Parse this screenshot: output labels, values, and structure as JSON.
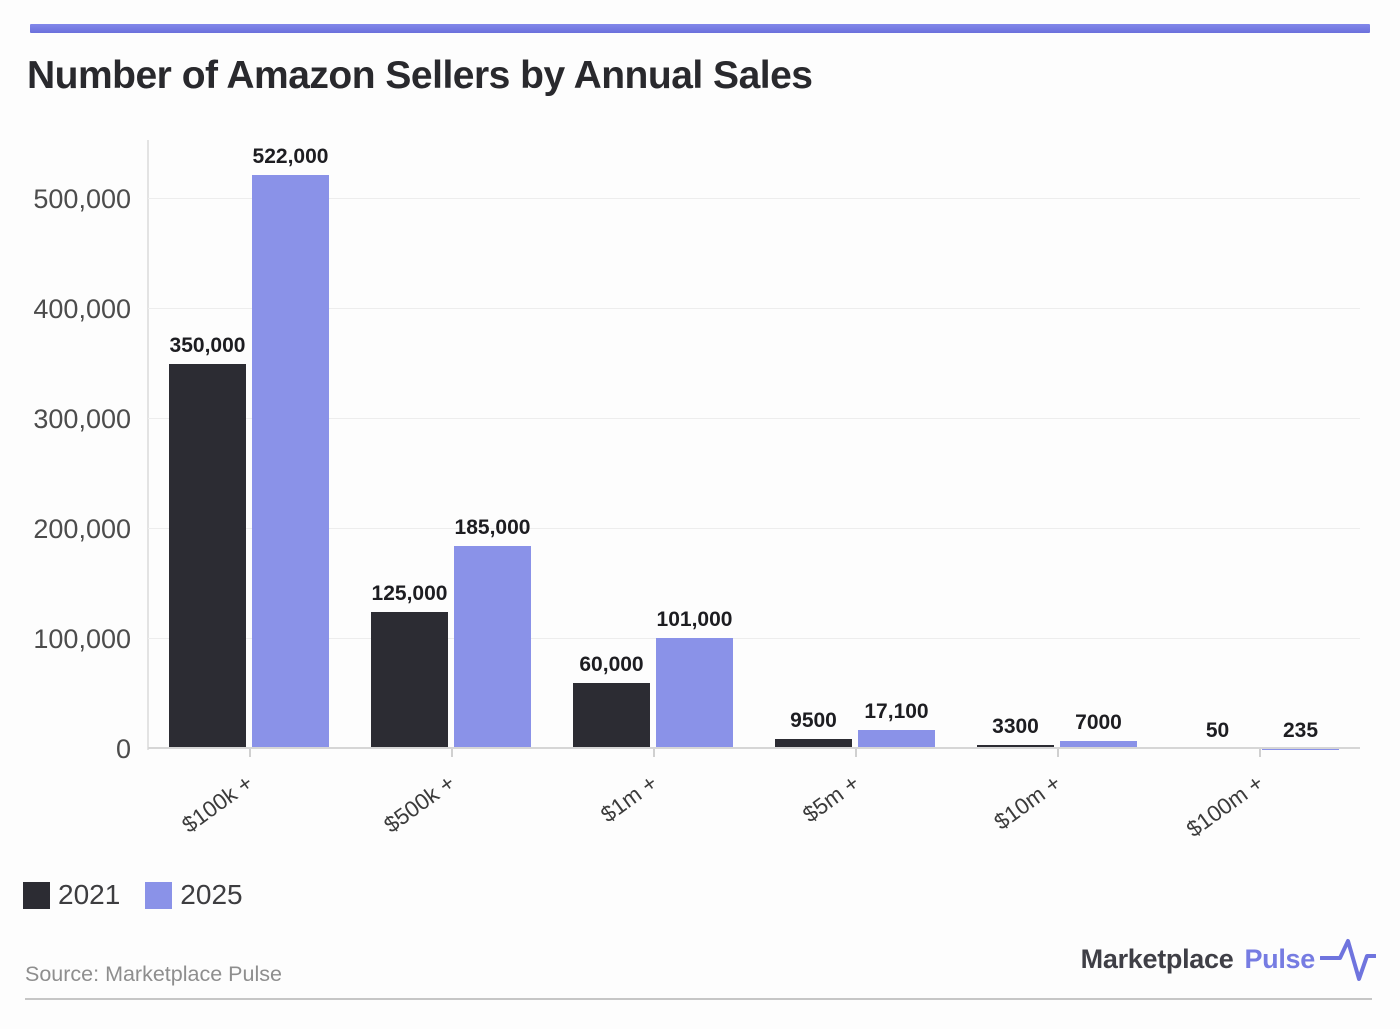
{
  "title": "Number of Amazon Sellers by Annual Sales",
  "source": "Source: Marketplace Pulse",
  "logo": {
    "brand": "Marketplace",
    "brand_accent": "Pulse",
    "icon": "pulse-line-icon",
    "accent_color": "#767ce2"
  },
  "colors": {
    "top_accent_line": "#7378e1",
    "bar_2021": "#2c2c33",
    "bar_2025": "#8a92e8",
    "gridline": "#ededed",
    "baseline": "#d6d6d6"
  },
  "chart_data": {
    "type": "bar",
    "title": "Number of Amazon Sellers by Annual Sales",
    "categories": [
      "$100k +",
      "$500k +",
      "$1m +",
      "$5m +",
      "$10m +",
      "$100m +"
    ],
    "series": [
      {
        "name": "2021",
        "color": "#2c2c33",
        "values": [
          350000,
          125000,
          60000,
          9500,
          3300,
          50
        ],
        "labels": [
          "350,000",
          "125,000",
          "60,000",
          "9500",
          "3300",
          "50"
        ]
      },
      {
        "name": "2025",
        "color": "#8a92e8",
        "values": [
          522000,
          185000,
          101000,
          17100,
          7000,
          235
        ],
        "labels": [
          "522,000",
          "185,000",
          "101,000",
          "17,100",
          "7000",
          "235"
        ]
      }
    ],
    "xlabel": "",
    "ylabel": "",
    "ylim": [
      0,
      550000
    ],
    "yticks": [
      0,
      100000,
      200000,
      300000,
      400000,
      500000
    ],
    "ytick_labels": [
      "0",
      "100,000",
      "200,000",
      "300,000",
      "400,000",
      "500,000"
    ],
    "grid": true,
    "legend_position": "bottom-left"
  }
}
